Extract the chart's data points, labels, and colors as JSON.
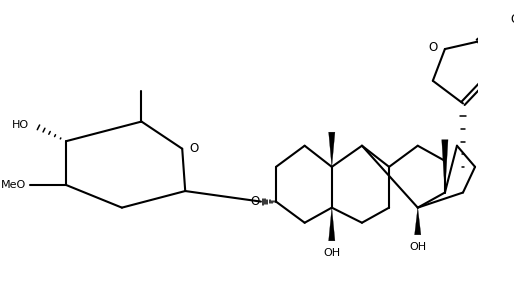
{
  "background_color": "#ffffff",
  "line_color": "#000000",
  "lw": 1.5,
  "figsize": [
    5.14,
    2.84
  ],
  "dpi": 100,
  "xlim": [
    0,
    10.3
  ],
  "ylim": [
    0,
    5.7
  ]
}
